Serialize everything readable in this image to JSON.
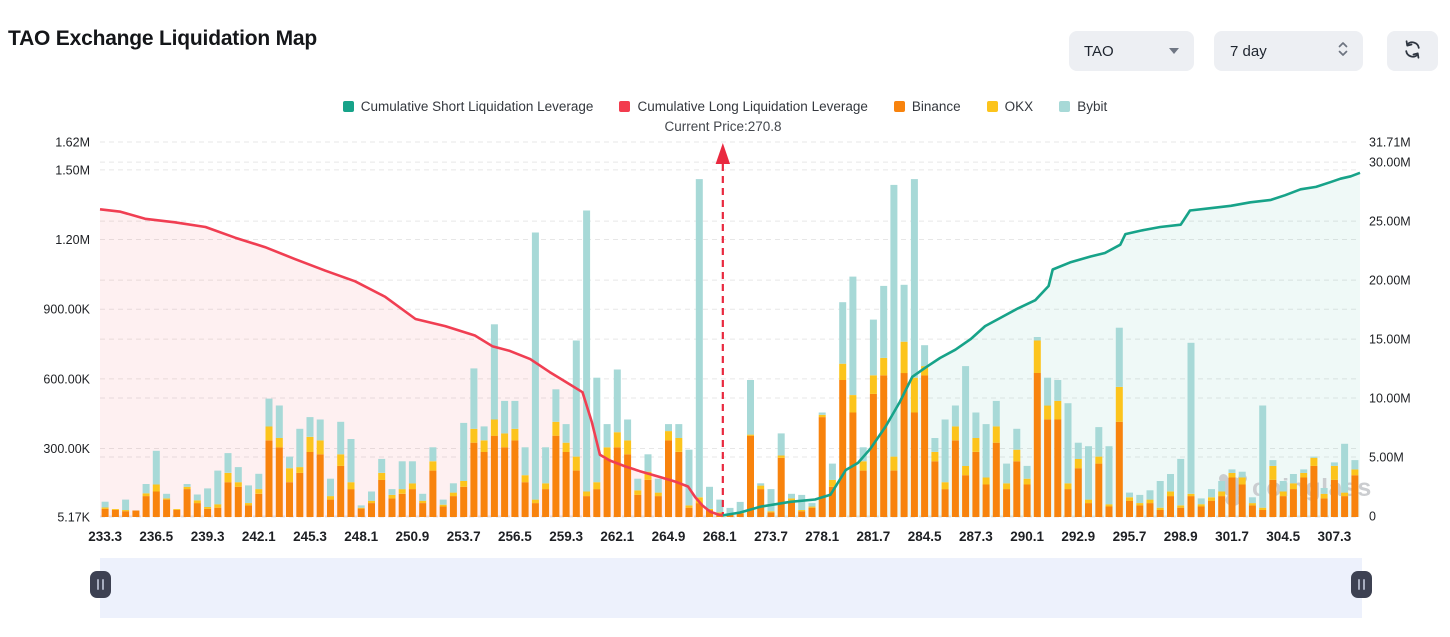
{
  "header": {
    "title": "TAO Exchange Liquidation Map",
    "coin_select": {
      "value": "TAO"
    },
    "period_select": {
      "value": "7 day"
    }
  },
  "legend": {
    "items": [
      {
        "label": "Cumulative Short Liquidation Leverage",
        "color": "#17a389"
      },
      {
        "label": "Cumulative Long Liquidation Leverage",
        "color": "#f23c4e"
      },
      {
        "label": "Binance",
        "color": "#f8830d"
      },
      {
        "label": "OKX",
        "color": "#fcc41c"
      },
      {
        "label": "Bybit",
        "color": "#a7d9d7"
      }
    ]
  },
  "watermark": {
    "text": "coinglass"
  },
  "chart_data": {
    "type": "bar",
    "subtype": "liquidation-map (stacked bars + cumulative lines)",
    "x_axis": {
      "tick_labels": [
        "233.3",
        "236.5",
        "239.3",
        "242.1",
        "245.3",
        "248.1",
        "250.9",
        "253.7",
        "256.5",
        "259.3",
        "262.1",
        "264.9",
        "268.1",
        "273.7",
        "278.1",
        "281.7",
        "284.5",
        "287.3",
        "290.1",
        "292.9",
        "295.7",
        "298.9",
        "301.7",
        "304.5",
        "307.3"
      ],
      "ticks_every_n_bars": 5
    },
    "left_axis": {
      "applies_to": "bars (liquidation leverage per price level)",
      "tick_labels": [
        "5.17K",
        "300.00K",
        "600.00K",
        "900.00K",
        "1.20M",
        "1.50M",
        "1.62M"
      ],
      "tick_values_k": [
        5.17,
        300,
        600,
        900,
        1200,
        1500,
        1620
      ],
      "range_k": [
        5.17,
        1620
      ]
    },
    "right_axis": {
      "applies_to": "cumulative lines",
      "tick_labels": [
        "0",
        "5.00M",
        "10.00M",
        "15.00M",
        "20.00M",
        "25.00M",
        "30.00M",
        "31.71M"
      ],
      "tick_values_m": [
        0,
        5,
        10,
        15,
        20,
        25,
        30,
        31.71
      ],
      "range_m": [
        0,
        31.71
      ]
    },
    "grid": "dashed horizontal lines for both axes",
    "legend_position": "top-center",
    "current_price": {
      "label": "Current Price:270.8",
      "value": 270.8,
      "bar_position": 60.8
    },
    "bars": {
      "stack_order": [
        "binance",
        "okx",
        "bybit"
      ],
      "unit": "thousand (left axis)",
      "values": [
        [
          35,
          6,
          25
        ],
        [
          30,
          4,
          0
        ],
        [
          25,
          5,
          45
        ],
        [
          28,
          0,
          0
        ],
        [
          90,
          12,
          40
        ],
        [
          110,
          30,
          145
        ],
        [
          75,
          5,
          20
        ],
        [
          30,
          4,
          0
        ],
        [
          120,
          10,
          12
        ],
        [
          60,
          12,
          25
        ],
        [
          35,
          8,
          80
        ],
        [
          40,
          15,
          145
        ],
        [
          150,
          40,
          85
        ],
        [
          130,
          20,
          65
        ],
        [
          50,
          10,
          76
        ],
        [
          100,
          20,
          66
        ],
        [
          330,
          60,
          120
        ],
        [
          300,
          40,
          140
        ],
        [
          150,
          60,
          50
        ],
        [
          190,
          25,
          165
        ],
        [
          280,
          65,
          85
        ],
        [
          270,
          60,
          90
        ],
        [
          75,
          15,
          75
        ],
        [
          220,
          50,
          140
        ],
        [
          120,
          30,
          186
        ],
        [
          36,
          4,
          10
        ],
        [
          60,
          10,
          40
        ],
        [
          160,
          30,
          60
        ],
        [
          80,
          15,
          25
        ],
        [
          100,
          20,
          120
        ],
        [
          120,
          25,
          95
        ],
        [
          60,
          10,
          30
        ],
        [
          200,
          40,
          60
        ],
        [
          45,
          8,
          22
        ],
        [
          90,
          15,
          40
        ],
        [
          130,
          25,
          250
        ],
        [
          320,
          60,
          260
        ],
        [
          280,
          50,
          60
        ],
        [
          350,
          70,
          410
        ],
        [
          300,
          60,
          140
        ],
        [
          330,
          50,
          120
        ],
        [
          150,
          30,
          120
        ],
        [
          60,
          15,
          1150
        ],
        [
          120,
          25,
          155
        ],
        [
          350,
          60,
          140
        ],
        [
          280,
          40,
          80
        ],
        [
          200,
          60,
          500
        ],
        [
          90,
          20,
          1210
        ],
        [
          120,
          30,
          450
        ],
        [
          250,
          50,
          100
        ],
        [
          300,
          65,
          270
        ],
        [
          270,
          60,
          90
        ],
        [
          95,
          20,
          50
        ],
        [
          160,
          35,
          75
        ],
        [
          90,
          15,
          60
        ],
        [
          330,
          40,
          30
        ],
        [
          280,
          60,
          60
        ],
        [
          40,
          10,
          240
        ],
        [
          60,
          25,
          1370
        ],
        [
          30,
          5,
          95
        ],
        [
          15,
          5,
          55
        ],
        [
          10,
          3,
          26
        ],
        [
          15,
          5,
          45
        ],
        [
          350,
          5,
          235
        ],
        [
          120,
          15,
          10
        ],
        [
          20,
          5,
          95
        ],
        [
          255,
          10,
          95
        ],
        [
          70,
          10,
          20
        ],
        [
          25,
          5,
          65
        ],
        [
          40,
          5,
          15
        ],
        [
          430,
          10,
          10
        ],
        [
          130,
          30,
          70
        ],
        [
          590,
          70,
          265
        ],
        [
          450,
          75,
          510
        ],
        [
          200,
          40,
          60
        ],
        [
          530,
          80,
          240
        ],
        [
          610,
          75,
          310
        ],
        [
          200,
          60,
          1170
        ],
        [
          620,
          135,
          245
        ],
        [
          450,
          150,
          855
        ],
        [
          610,
          40,
          90
        ],
        [
          240,
          40,
          60
        ],
        [
          120,
          30,
          270
        ],
        [
          330,
          60,
          90
        ],
        [
          180,
          40,
          430
        ],
        [
          280,
          60,
          110
        ],
        [
          140,
          30,
          230
        ],
        [
          320,
          70,
          110
        ],
        [
          120,
          25,
          85
        ],
        [
          240,
          50,
          90
        ],
        [
          140,
          25,
          55
        ],
        [
          620,
          140,
          15
        ],
        [
          420,
          60,
          120
        ],
        [
          420,
          80,
          90
        ],
        [
          120,
          25,
          345
        ],
        [
          210,
          40,
          70
        ],
        [
          60,
          15,
          230
        ],
        [
          230,
          30,
          127
        ],
        [
          45,
          10,
          250
        ],
        [
          410,
          150,
          255
        ],
        [
          70,
          15,
          20
        ],
        [
          50,
          10,
          35
        ],
        [
          60,
          15,
          40
        ],
        [
          30,
          10,
          115
        ],
        [
          90,
          20,
          75
        ],
        [
          40,
          10,
          200
        ],
        [
          90,
          10,
          650
        ],
        [
          45,
          10,
          25
        ],
        [
          70,
          15,
          35
        ],
        [
          90,
          20,
          45
        ],
        [
          170,
          20,
          15
        ],
        [
          140,
          30,
          25
        ],
        [
          50,
          10,
          25
        ],
        [
          30,
          10,
          440
        ],
        [
          160,
          60,
          25
        ],
        [
          90,
          20,
          45
        ],
        [
          120,
          25,
          40
        ],
        [
          170,
          20,
          15
        ],
        [
          220,
          35,
          5
        ],
        [
          80,
          20,
          25
        ],
        [
          160,
          60,
          15
        ],
        [
          90,
          15,
          210
        ],
        [
          180,
          25,
          40
        ]
      ]
    },
    "long_line": {
      "name": "Cumulative Long Liquidation Leverage",
      "unit": "million (right axis)",
      "points_bx_v": [
        [
          0,
          26.0
        ],
        [
          2,
          25.8
        ],
        [
          4.4,
          25.2
        ],
        [
          7.3,
          24.9
        ],
        [
          10.3,
          24.5
        ],
        [
          13.2,
          23.6
        ],
        [
          16.1,
          22.8
        ],
        [
          19,
          21.8
        ],
        [
          22,
          20.8
        ],
        [
          24.9,
          19.9
        ],
        [
          27.8,
          18.6
        ],
        [
          30.8,
          16.7
        ],
        [
          33.7,
          16.1
        ],
        [
          36.6,
          15.3
        ],
        [
          38.3,
          14.4
        ],
        [
          40,
          14.0
        ],
        [
          42,
          13.3
        ],
        [
          43.9,
          12.2
        ],
        [
          45.4,
          11.4
        ],
        [
          47.1,
          10.5
        ],
        [
          48,
          8.0
        ],
        [
          48.8,
          5.2
        ],
        [
          49.8,
          4.7
        ],
        [
          51.3,
          4.2
        ],
        [
          52.7,
          3.8
        ],
        [
          54.7,
          3.3
        ],
        [
          56.2,
          2.9
        ],
        [
          57.4,
          2.5
        ],
        [
          58.1,
          1.6
        ],
        [
          58.8,
          0.9
        ],
        [
          59.6,
          0.35
        ],
        [
          60.4,
          0.12
        ],
        [
          60.8,
          0.05
        ]
      ]
    },
    "short_line": {
      "name": "Cumulative Short Liquidation Leverage",
      "unit": "million (right axis)",
      "points_bx_v": [
        [
          60.8,
          0.05
        ],
        [
          62.5,
          0.3
        ],
        [
          64.5,
          0.8
        ],
        [
          67.4,
          1.2
        ],
        [
          69.8,
          1.4
        ],
        [
          71.3,
          1.8
        ],
        [
          72.8,
          3.9
        ],
        [
          74,
          4.5
        ],
        [
          75.2,
          5.7
        ],
        [
          76.7,
          7.6
        ],
        [
          78.1,
          9.7
        ],
        [
          79.3,
          11.8
        ],
        [
          80.6,
          12.6
        ],
        [
          82,
          13.4
        ],
        [
          83.5,
          14.1
        ],
        [
          85,
          15.0
        ],
        [
          86.4,
          16.1
        ],
        [
          87.9,
          16.8
        ],
        [
          89.6,
          17.6
        ],
        [
          91.3,
          18.3
        ],
        [
          92.6,
          19.5
        ],
        [
          93,
          20.9
        ],
        [
          94.7,
          21.5
        ],
        [
          96.7,
          22.0
        ],
        [
          98.1,
          22.3
        ],
        [
          99.6,
          23.0
        ],
        [
          100.1,
          23.9
        ],
        [
          101.6,
          24.2
        ],
        [
          103.5,
          24.5
        ],
        [
          105.5,
          24.7
        ],
        [
          106.4,
          25.9
        ],
        [
          108.4,
          26.1
        ],
        [
          110.4,
          26.3
        ],
        [
          112.3,
          26.6
        ],
        [
          114.3,
          26.8
        ],
        [
          115.7,
          27.2
        ],
        [
          117.2,
          27.7
        ],
        [
          118.7,
          27.9
        ],
        [
          120.1,
          28.3
        ],
        [
          121.1,
          28.6
        ],
        [
          122.1,
          28.8
        ],
        [
          123,
          29.1
        ]
      ]
    },
    "colors": {
      "short_line": "#17a389",
      "short_fill": "rgba(23,163,137,0.07)",
      "long_line": "#f03e52",
      "long_fill": "rgba(240,62,82,0.08)",
      "binance": "#f8830d",
      "okx": "#fcc41c",
      "bybit": "#a7d9d7",
      "price_line": "#e9293f",
      "grid": "#e7e7e7",
      "axis_text": "#1e2024",
      "watermark": "#c9cbce"
    }
  }
}
